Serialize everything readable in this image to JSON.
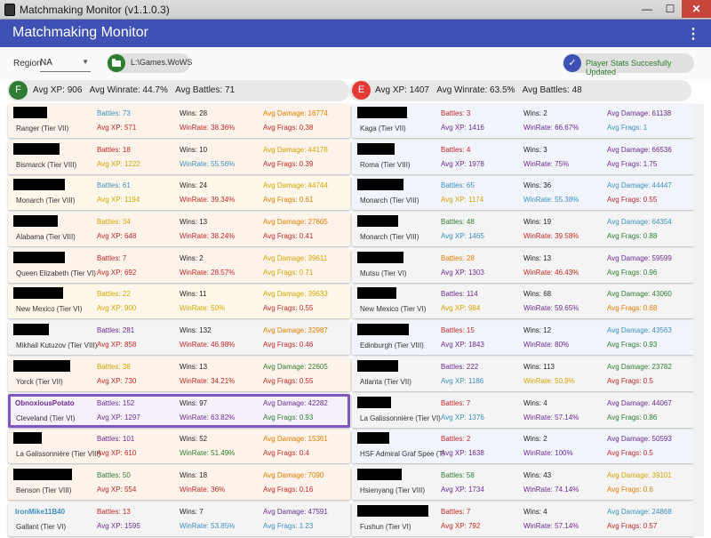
{
  "window": {
    "title": "Matchmaking Monitor (v1.1.0.3)",
    "minimize": "—",
    "maximize": "☐",
    "close": "✕"
  },
  "appbar": {
    "title": "Matchmaking Monitor",
    "menu_icon": "⋮"
  },
  "controls": {
    "region_label": "Region",
    "region_value": "NA",
    "path": "L:\\Games.WoWS",
    "status": "Player Stats Succesfully Updated"
  },
  "colors": {
    "appbar": "#3f51b5",
    "friendly_badge": "#2e7d32",
    "enemy_badge": "#e53935",
    "highlight": "#7e57c2"
  },
  "friendly": {
    "badge": "F",
    "avg_xp": "Avg XP: 906",
    "avg_winrate": "Avg Winrate: 44.7%",
    "avg_battles": "Avg Battles: 71"
  },
  "enemy": {
    "badge": "E",
    "avg_xp": "Avg XP: 1407",
    "avg_winrate": "Avg Winrate: 63.5%",
    "avg_battles": "Avg Battles: 48"
  },
  "friendly_players": [
    {
      "name": "",
      "ship": "Ranger (Tier VII)",
      "battles": "Battles: 73",
      "wins": "Wins: 28",
      "avg_damage": "Avg Damage: 16774",
      "avg_xp": "Avg XP: 571",
      "winrate": "WinRate: 38.36%",
      "avg_frags": "Avg Frags: 0.38",
      "bg": "#fdf3ea",
      "c_battles": "#3d8fbf",
      "c_damage": "#e67e00",
      "c_xp": "#c62828",
      "c_winrate": "#c62828",
      "c_frags": "#c62828",
      "mask_w": 38
    },
    {
      "name": "",
      "ship": "Bismarck (Tier VIII)",
      "battles": "Battles: 18",
      "wins": "Wins: 10",
      "avg_damage": "Avg Damage: 44178",
      "avg_xp": "Avg XP: 1222",
      "winrate": "WinRate: 55.56%",
      "avg_frags": "Avg Frags: 0.39",
      "bg": "#fdf3ea",
      "c_battles": "#c62828",
      "c_damage": "#d4a500",
      "c_xp": "#d4a500",
      "c_winrate": "#3d8fbf",
      "c_frags": "#c62828",
      "mask_w": 52
    },
    {
      "name": "",
      "ship": "Monarch (Tier VIII)",
      "battles": "Battles: 61",
      "wins": "Wins: 24",
      "avg_damage": "Avg Damage: 44744",
      "avg_xp": "Avg XP: 1194",
      "winrate": "WinRate: 39.34%",
      "avg_frags": "Avg Frags: 0.61",
      "bg": "#fff8ea",
      "c_battles": "#3d8fbf",
      "c_damage": "#d4a500",
      "c_xp": "#d4a500",
      "c_winrate": "#c62828",
      "c_frags": "#e67e00",
      "mask_w": 58
    },
    {
      "name": "",
      "ship": "Alabama (Tier VIII)",
      "battles": "Battles: 34",
      "wins": "Wins: 13",
      "avg_damage": "Avg Damage: 27605",
      "avg_xp": "Avg XP: 648",
      "winrate": "WinRate: 38.24%",
      "avg_frags": "Avg Frags: 0.41",
      "bg": "#fdf3ea",
      "c_battles": "#d4a500",
      "c_damage": "#e67e00",
      "c_xp": "#c62828",
      "c_winrate": "#c62828",
      "c_frags": "#c62828",
      "mask_w": 50
    },
    {
      "name": "",
      "ship": "Queen Elizabeth (Tier VI)",
      "battles": "Battles: 7",
      "wins": "Wins: 2",
      "avg_damage": "Avg Damage: 39611",
      "avg_xp": "Avg XP: 692",
      "winrate": "WinRate: 28.57%",
      "avg_frags": "Avg Frags: 0.71",
      "bg": "#fdf3ea",
      "c_battles": "#c62828",
      "c_damage": "#d4a500",
      "c_xp": "#c62828",
      "c_winrate": "#c62828",
      "c_frags": "#d4a500",
      "mask_w": 58
    },
    {
      "name": "",
      "ship": "New Mexico (Tier VI)",
      "battles": "Battles: 22",
      "wins": "Wins: 11",
      "avg_damage": "Avg Damage: 39633",
      "avg_xp": "Avg XP: 900",
      "winrate": "WinRate: 50%",
      "avg_frags": "Avg Frags: 0.55",
      "bg": "#fff8ea",
      "c_battles": "#d4a500",
      "c_damage": "#d4a500",
      "c_xp": "#d4a500",
      "c_winrate": "#d4a500",
      "c_frags": "#c62828",
      "mask_w": 56
    },
    {
      "name": "",
      "ship": "Mikhail Kutuzov (Tier VIII)",
      "battles": "Battles: 281",
      "wins": "Wins: 132",
      "avg_damage": "Avg Damage: 32987",
      "avg_xp": "Avg XP: 858",
      "winrate": "WinRate: 46.98%",
      "avg_frags": "Avg Frags: 0.46",
      "bg": "#f4f4f4",
      "c_battles": "#6a2c91",
      "c_damage": "#e67e00",
      "c_xp": "#c62828",
      "c_winrate": "#c62828",
      "c_frags": "#c62828",
      "mask_w": 40
    },
    {
      "name": "",
      "ship": "Yorck (Tier VII)",
      "battles": "Battles: 38",
      "wins": "Wins: 13",
      "avg_damage": "Avg Damage: 22605",
      "avg_xp": "Avg XP: 730",
      "winrate": "WinRate: 34.21%",
      "avg_frags": "Avg Frags: 0.55",
      "bg": "#fdf3ea",
      "c_battles": "#d4a500",
      "c_damage": "#2e7d32",
      "c_xp": "#c62828",
      "c_winrate": "#c62828",
      "c_frags": "#c62828",
      "mask_w": 64
    },
    {
      "name": "ObnoxiousPotato",
      "ship": "Cleveland (Tier VI)",
      "battles": "Battles: 152",
      "wins": "Wins: 97",
      "avg_damage": "Avg Damage: 42282",
      "avg_xp": "Avg XP: 1297",
      "winrate": "WinRate: 63.82%",
      "avg_frags": "Avg Frags: 0.93",
      "bg": "#f6f0fb",
      "c_battles": "#6a2c91",
      "c_damage": "#6a2c91",
      "c_xp": "#6a2c91",
      "c_winrate": "#6a2c91",
      "c_frags": "#2e7d32",
      "mask_w": 0,
      "c_name": "#6a2c91",
      "highlight": true
    },
    {
      "name": "",
      "ship": "La Galissonnière (Tier VIII)",
      "battles": "Battles: 101",
      "wins": "Wins: 52",
      "avg_damage": "Avg Damage: 15361",
      "avg_xp": "Avg XP: 610",
      "winrate": "WinRate: 51.49%",
      "avg_frags": "Avg Frags: 0.4",
      "bg": "#fdf3ea",
      "c_battles": "#6a2c91",
      "c_damage": "#e67e00",
      "c_xp": "#c62828",
      "c_winrate": "#2e7d32",
      "c_frags": "#c62828",
      "mask_w": 32
    },
    {
      "name": "",
      "ship": "Benson (Tier VIII)",
      "battles": "Battles: 50",
      "wins": "Wins: 18",
      "avg_damage": "Avg Damage: 7090",
      "avg_xp": "Avg XP: 554",
      "winrate": "WinRate: 36%",
      "avg_frags": "Avg Frags: 0.16",
      "bg": "#fdf3ea",
      "c_battles": "#2e7d32",
      "c_damage": "#e67e00",
      "c_xp": "#c62828",
      "c_winrate": "#c62828",
      "c_frags": "#c62828",
      "mask_w": 66
    },
    {
      "name": "IronMike11B40",
      "ship": "Gallant (Tier VI)",
      "battles": "Battles: 13",
      "wins": "Wins: 7",
      "avg_damage": "Avg Damage: 47591",
      "avg_xp": "Avg XP: 1595",
      "winrate": "WinRate: 53.85%",
      "avg_frags": "Avg Frags: 1.23",
      "bg": "#f4f4f4",
      "c_battles": "#c62828",
      "c_damage": "#6a2c91",
      "c_xp": "#6a2c91",
      "c_winrate": "#3d8fbf",
      "c_frags": "#3d8fbf",
      "mask_w": 0,
      "c_name": "#3d8fbf"
    }
  ],
  "enemy_players": [
    {
      "name": "",
      "ship": "Kaga (Tier VII)",
      "battles": "Battles: 3",
      "wins": "Wins: 2",
      "avg_damage": "Avg Damage: 61138",
      "avg_xp": "Avg XP: 1416",
      "winrate": "WinRate: 66.67%",
      "avg_frags": "Avg Frags: 1",
      "bg": "#f1f4fb",
      "c_battles": "#c62828",
      "c_damage": "#6a2c91",
      "c_xp": "#6a2c91",
      "c_winrate": "#6a2c91",
      "c_frags": "#3d8fbf",
      "mask_w": 56
    },
    {
      "name": "",
      "ship": "Roma (Tier VIII)",
      "battles": "Battles: 4",
      "wins": "Wins: 3",
      "avg_damage": "Avg Damage: 66536",
      "avg_xp": "Avg XP: 1978",
      "winrate": "WinRate: 75%",
      "avg_frags": "Avg Frags: 1.75",
      "bg": "#f1f4fb",
      "c_battles": "#c62828",
      "c_damage": "#6a2c91",
      "c_xp": "#6a2c91",
      "c_winrate": "#6a2c91",
      "c_frags": "#6a2c91",
      "mask_w": 42
    },
    {
      "name": "",
      "ship": "Monarch (Tier VIII)",
      "battles": "Battles: 65",
      "wins": "Wins: 36",
      "avg_damage": "Avg Damage: 44447",
      "avg_xp": "Avg XP: 1174",
      "winrate": "WinRate: 55.38%",
      "avg_frags": "Avg Frags: 0.55",
      "bg": "#f1f4fb",
      "c_battles": "#3d8fbf",
      "c_damage": "#3d8fbf",
      "c_xp": "#d4a500",
      "c_winrate": "#3d8fbf",
      "c_frags": "#c62828",
      "mask_w": 52
    },
    {
      "name": "",
      "ship": "Monarch (Tier VIII)",
      "battles": "Battles: 48",
      "wins": "Wins: 19",
      "avg_damage": "Avg Damage: 64354",
      "avg_xp": "Avg XP: 1465",
      "winrate": "WinRate: 39.58%",
      "avg_frags": "Avg Frags: 0.88",
      "bg": "#f4f4f4",
      "c_battles": "#2e7d32",
      "c_damage": "#3d8fbf",
      "c_xp": "#3d8fbf",
      "c_winrate": "#c62828",
      "c_frags": "#2e7d32",
      "mask_w": 46
    },
    {
      "name": "",
      "ship": "Mutsu (Tier VI)",
      "battles": "Battles: 28",
      "wins": "Wins: 13",
      "avg_damage": "Avg Damage: 59599",
      "avg_xp": "Avg XP: 1303",
      "winrate": "WinRate: 46.43%",
      "avg_frags": "Avg Frags: 0.96",
      "bg": "#f4f4f4",
      "c_battles": "#e67e00",
      "c_damage": "#6a2c91",
      "c_xp": "#6a2c91",
      "c_winrate": "#c62828",
      "c_frags": "#2e7d32",
      "mask_w": 52
    },
    {
      "name": "",
      "ship": "New Mexico (Tier VI)",
      "battles": "Battles: 114",
      "wins": "Wins: 68",
      "avg_damage": "Avg Damage: 43060",
      "avg_xp": "Avg XP: 984",
      "winrate": "WinRate: 59.65%",
      "avg_frags": "Avg Frags: 0.68",
      "bg": "#f4f4f4",
      "c_battles": "#6a2c91",
      "c_damage": "#2e7d32",
      "c_xp": "#d4a500",
      "c_winrate": "#6a2c91",
      "c_frags": "#e67e00",
      "mask_w": 44
    },
    {
      "name": "",
      "ship": "Edinburgh (Tier VIII)",
      "battles": "Battles: 15",
      "wins": "Wins: 12",
      "avg_damage": "Avg Damage: 43563",
      "avg_xp": "Avg XP: 1843",
      "winrate": "WinRate: 80%",
      "avg_frags": "Avg Frags: 0.93",
      "bg": "#f1f4fb",
      "c_battles": "#c62828",
      "c_damage": "#3d8fbf",
      "c_xp": "#6a2c91",
      "c_winrate": "#6a2c91",
      "c_frags": "#2e7d32",
      "mask_w": 58
    },
    {
      "name": "",
      "ship": "Atlanta (Tier VII)",
      "battles": "Battles: 222",
      "wins": "Wins: 113",
      "avg_damage": "Avg Damage: 23782",
      "avg_xp": "Avg XP: 1186",
      "winrate": "WinRate: 50.9%",
      "avg_frags": "Avg Frags: 0.5",
      "bg": "#f4f4f4",
      "c_battles": "#6a2c91",
      "c_damage": "#2e7d32",
      "c_xp": "#3d8fbf",
      "c_winrate": "#d4a500",
      "c_frags": "#c62828",
      "mask_w": 46
    },
    {
      "name": "",
      "ship": "La Galissonnière (Tier VI)",
      "battles": "Battles: 7",
      "wins": "Wins: 4",
      "avg_damage": "Avg Damage: 44067",
      "avg_xp": "Avg XP: 1376",
      "winrate": "WinRate: 57.14%",
      "avg_frags": "Avg Frags: 0.86",
      "bg": "#f4f4f4",
      "c_battles": "#c62828",
      "c_damage": "#6a2c91",
      "c_xp": "#3d8fbf",
      "c_winrate": "#6a2c91",
      "c_frags": "#2e7d32",
      "mask_w": 38
    },
    {
      "name": "",
      "ship": "HSF Admiral Graf Spee (Ti",
      "battles": "Battles: 2",
      "wins": "Wins: 2",
      "avg_damage": "Avg Damage: 50593",
      "avg_xp": "Avg XP: 1638",
      "winrate": "WinRate: 100%",
      "avg_frags": "Avg Frags: 0.5",
      "bg": "#f1f4fb",
      "c_battles": "#c62828",
      "c_damage": "#6a2c91",
      "c_xp": "#6a2c91",
      "c_winrate": "#6a2c91",
      "c_frags": "#c62828",
      "mask_w": 36
    },
    {
      "name": "",
      "ship": "Hsienyang (Tier VIII)",
      "battles": "Battles: 58",
      "wins": "Wins: 43",
      "avg_damage": "Avg Damage: 39101",
      "avg_xp": "Avg XP: 1734",
      "winrate": "WinRate: 74.14%",
      "avg_frags": "Avg Frags: 0.6",
      "bg": "#f4f4f4",
      "c_battles": "#2e7d32",
      "c_damage": "#d4a500",
      "c_xp": "#6a2c91",
      "c_winrate": "#6a2c91",
      "c_frags": "#e67e00",
      "mask_w": 50
    },
    {
      "name": "",
      "ship": "Fushun (Tier VI)",
      "battles": "Battles: 7",
      "wins": "Wins: 4",
      "avg_damage": "Avg Damage: 24868",
      "avg_xp": "Avg XP: 792",
      "winrate": "WinRate: 57.14%",
      "avg_frags": "Avg Frags: 0.57",
      "bg": "#f4f4f4",
      "c_battles": "#c62828",
      "c_damage": "#3d8fbf",
      "c_xp": "#c62828",
      "c_winrate": "#6a2c91",
      "c_frags": "#c62828",
      "mask_w": 80
    }
  ]
}
